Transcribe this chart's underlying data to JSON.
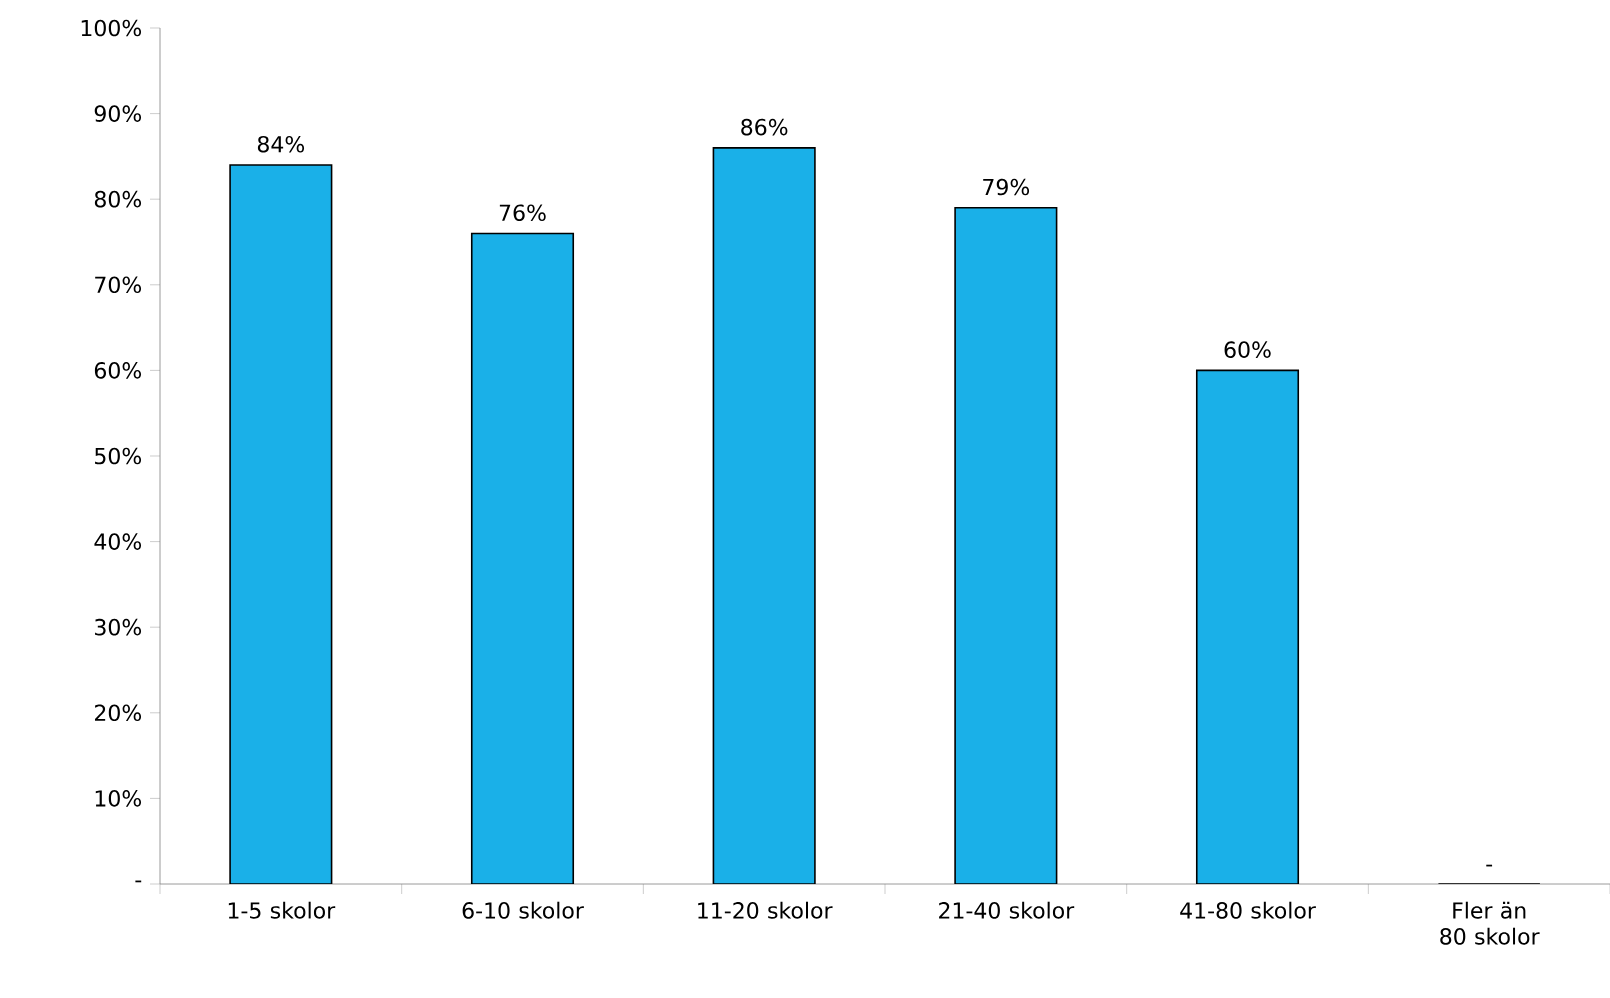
{
  "chart_data": {
    "type": "bar",
    "categories": [
      "1-5 skolor",
      "6-10 skolor",
      "11-20 skolor",
      "21-40 skolor",
      "41-80 skolor",
      "Fler än 80 skolor"
    ],
    "values": [
      84,
      76,
      86,
      79,
      60,
      0
    ],
    "value_labels": [
      "84%",
      "76%",
      "86%",
      "79%",
      "60%",
      "-"
    ],
    "color": "#1ab0e8",
    "ylim": [
      0,
      100
    ],
    "yticks": [
      {
        "value": 0,
        "label": "-"
      },
      {
        "value": 10,
        "label": "10%"
      },
      {
        "value": 20,
        "label": "20%"
      },
      {
        "value": 30,
        "label": "30%"
      },
      {
        "value": 40,
        "label": "40%"
      },
      {
        "value": 50,
        "label": "50%"
      },
      {
        "value": 60,
        "label": "60%"
      },
      {
        "value": 70,
        "label": "70%"
      },
      {
        "value": 80,
        "label": "80%"
      },
      {
        "value": 90,
        "label": "90%"
      },
      {
        "value": 100,
        "label": "100%"
      }
    ],
    "grid": false
  }
}
